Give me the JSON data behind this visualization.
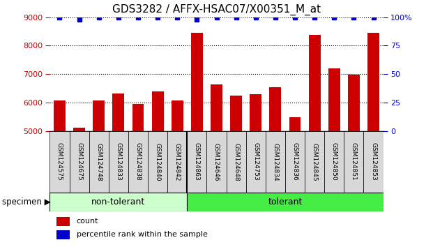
{
  "title": "GDS3282 / AFFX-HSAC07/X00351_M_at",
  "categories": [
    "GSM124575",
    "GSM124675",
    "GSM124748",
    "GSM124833",
    "GSM124838",
    "GSM124840",
    "GSM124842",
    "GSM124863",
    "GSM124646",
    "GSM124648",
    "GSM124753",
    "GSM124834",
    "GSM124836",
    "GSM124845",
    "GSM124850",
    "GSM124851",
    "GSM124853"
  ],
  "bar_values": [
    6080,
    5120,
    6070,
    6310,
    5960,
    6380,
    6070,
    8450,
    6640,
    6250,
    6290,
    6540,
    5480,
    8380,
    7200,
    6970,
    8450
  ],
  "percentile_values": [
    100,
    98,
    100,
    100,
    100,
    100,
    100,
    98,
    100,
    100,
    100,
    100,
    100,
    100,
    100,
    100,
    100
  ],
  "bar_color": "#cc0000",
  "percentile_color": "#0000cc",
  "ylim_left": [
    5000,
    9000
  ],
  "ylim_right": [
    0,
    100
  ],
  "yticks_left": [
    5000,
    6000,
    7000,
    8000,
    9000
  ],
  "yticks_right": [
    0,
    25,
    50,
    75,
    100
  ],
  "ytick_labels_right": [
    "0",
    "25",
    "50",
    "75",
    "100%"
  ],
  "non_tolerant_count": 7,
  "tolerant_count": 10,
  "non_tolerant_label": "non-tolerant",
  "tolerant_label": "tolerant",
  "specimen_label": "specimen",
  "legend_count_label": "count",
  "legend_percentile_label": "percentile rank within the sample",
  "bar_color_hex": "#cc0000",
  "dot_color_hex": "#0000cc",
  "group_color_light": "#ccffcc",
  "group_color_dark": "#44ee44",
  "xlabel_box_color": "#d8d8d8",
  "title_fontsize": 11,
  "tick_fontsize": 8,
  "label_fontsize": 9
}
